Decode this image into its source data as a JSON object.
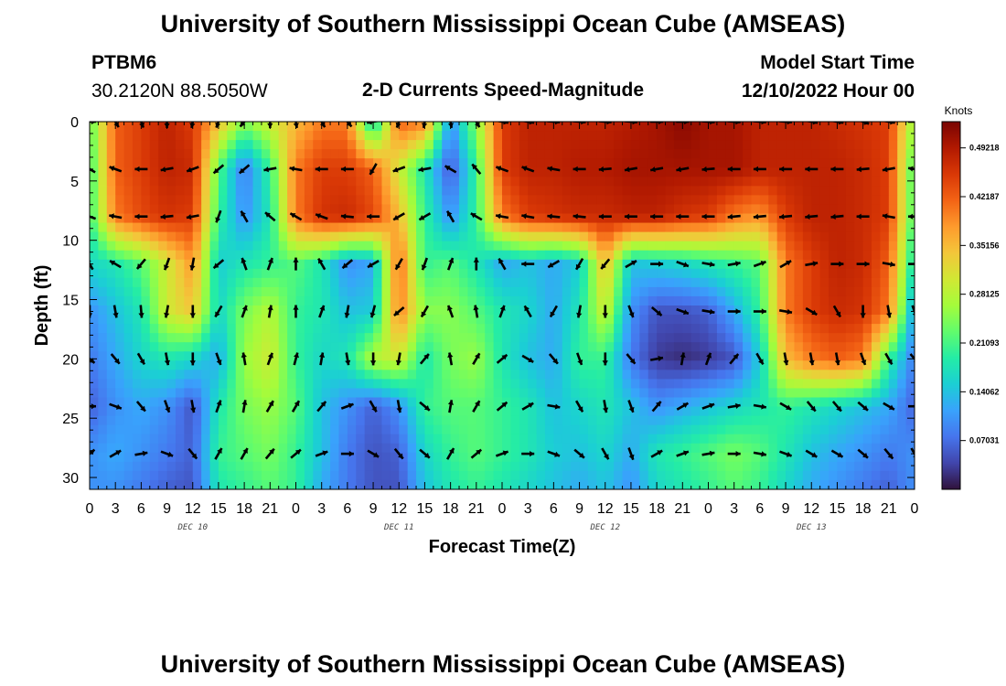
{
  "title": "University of Southern Mississippi Ocean Cube (AMSEAS)",
  "title_bottom": "University of Southern Mississippi Ocean Cube (AMSEAS)",
  "station": {
    "id": "PTBM6",
    "coords": "30.2120N  88.5050W"
  },
  "model_start": {
    "label": "Model Start Time",
    "value": "12/10/2022 Hour 00"
  },
  "chart_data": {
    "type": "heatmap",
    "title": "2-D Currents Speed-Magnitude",
    "xlabel": "Forecast Time(Z)",
    "ylabel": "Depth (ft)",
    "x_tick_labels": [
      "0",
      "3",
      "6",
      "9",
      "12",
      "15",
      "18",
      "21",
      "0",
      "3",
      "6",
      "9",
      "12",
      "15",
      "18",
      "21",
      "0",
      "3",
      "6",
      "9",
      "12",
      "15",
      "18",
      "21",
      "0",
      "3",
      "6",
      "9",
      "12",
      "15",
      "18",
      "21",
      "0"
    ],
    "y_ticks": [
      0,
      5,
      10,
      15,
      20,
      25,
      30
    ],
    "ylim": [
      0,
      31
    ],
    "xlim_hours": [
      0,
      96
    ],
    "day_labels": [
      {
        "text": "DEC 10",
        "hour": 12
      },
      {
        "text": "DEC 11",
        "hour": 36
      },
      {
        "text": "DEC 12",
        "hour": 60
      },
      {
        "text": "DEC 13",
        "hour": 84
      }
    ],
    "colorbar": {
      "units": "Knots",
      "min": 0.0,
      "max": 0.53,
      "tick_labels": [
        "0.49218",
        "0.42187",
        "0.35156",
        "0.28125",
        "0.21093",
        "0.14062",
        "0.07031"
      ],
      "tick_values": [
        0.49218,
        0.42187,
        0.35156,
        0.28125,
        0.21093,
        0.14062,
        0.07031
      ],
      "colors": [
        "#30123b",
        "#4145ab",
        "#4675ed",
        "#39a2fc",
        "#1bcfd4",
        "#24eca6",
        "#61fc6c",
        "#a4fc3b",
        "#d1e834",
        "#f3c63a",
        "#fe9b2d",
        "#f36315",
        "#d93806",
        "#b11901",
        "#7a0402"
      ]
    },
    "grid": {
      "hours": [
        0,
        3,
        6,
        9,
        12,
        15,
        18,
        21,
        24,
        27,
        30,
        33,
        36,
        39,
        42,
        45,
        48,
        51,
        54,
        57,
        60,
        63,
        66,
        69,
        72,
        75,
        78,
        81,
        84,
        87,
        90,
        93,
        96
      ],
      "depths": [
        0,
        4,
        8,
        12,
        16,
        20,
        24,
        28,
        31
      ],
      "speed": [
        [
          0.22,
          0.42,
          0.45,
          0.48,
          0.45,
          0.35,
          0.25,
          0.3,
          0.35,
          0.4,
          0.4,
          0.15,
          0.42,
          0.4,
          0.1,
          0.25,
          0.45,
          0.48,
          0.48,
          0.48,
          0.48,
          0.49,
          0.5,
          0.52,
          0.5,
          0.5,
          0.48,
          0.48,
          0.48,
          0.47,
          0.46,
          0.45,
          0.25
        ],
        [
          0.2,
          0.42,
          0.45,
          0.48,
          0.47,
          0.22,
          0.08,
          0.2,
          0.4,
          0.45,
          0.45,
          0.42,
          0.3,
          0.18,
          0.05,
          0.2,
          0.45,
          0.48,
          0.48,
          0.49,
          0.49,
          0.5,
          0.5,
          0.5,
          0.5,
          0.5,
          0.48,
          0.48,
          0.48,
          0.48,
          0.47,
          0.45,
          0.2
        ],
        [
          0.2,
          0.4,
          0.44,
          0.46,
          0.45,
          0.2,
          0.1,
          0.18,
          0.4,
          0.46,
          0.47,
          0.44,
          0.35,
          0.2,
          0.1,
          0.2,
          0.4,
          0.45,
          0.46,
          0.47,
          0.47,
          0.48,
          0.48,
          0.46,
          0.45,
          0.4,
          0.38,
          0.45,
          0.48,
          0.48,
          0.47,
          0.45,
          0.2
        ],
        [
          0.16,
          0.18,
          0.22,
          0.3,
          0.38,
          0.15,
          0.18,
          0.2,
          0.22,
          0.18,
          0.1,
          0.12,
          0.42,
          0.2,
          0.22,
          0.18,
          0.12,
          0.14,
          0.12,
          0.15,
          0.35,
          0.14,
          0.15,
          0.16,
          0.18,
          0.2,
          0.22,
          0.4,
          0.45,
          0.48,
          0.47,
          0.42,
          0.16
        ],
        [
          0.1,
          0.14,
          0.18,
          0.3,
          0.34,
          0.16,
          0.24,
          0.28,
          0.2,
          0.18,
          0.14,
          0.15,
          0.4,
          0.25,
          0.25,
          0.22,
          0.18,
          0.16,
          0.12,
          0.18,
          0.3,
          0.1,
          0.05,
          0.05,
          0.06,
          0.12,
          0.2,
          0.4,
          0.45,
          0.47,
          0.46,
          0.4,
          0.1
        ],
        [
          0.08,
          0.12,
          0.16,
          0.18,
          0.16,
          0.12,
          0.26,
          0.3,
          0.2,
          0.16,
          0.18,
          0.28,
          0.3,
          0.18,
          0.24,
          0.26,
          0.18,
          0.14,
          0.12,
          0.2,
          0.2,
          0.08,
          0.03,
          0.02,
          0.03,
          0.05,
          0.15,
          0.35,
          0.4,
          0.42,
          0.4,
          0.2,
          0.08
        ],
        [
          0.06,
          0.1,
          0.12,
          0.1,
          0.05,
          0.18,
          0.24,
          0.26,
          0.22,
          0.14,
          0.1,
          0.06,
          0.1,
          0.2,
          0.22,
          0.22,
          0.2,
          0.18,
          0.14,
          0.16,
          0.18,
          0.14,
          0.1,
          0.12,
          0.14,
          0.16,
          0.18,
          0.2,
          0.18,
          0.16,
          0.14,
          0.12,
          0.06
        ],
        [
          0.1,
          0.12,
          0.1,
          0.08,
          0.06,
          0.2,
          0.22,
          0.24,
          0.2,
          0.14,
          0.08,
          0.05,
          0.06,
          0.16,
          0.2,
          0.22,
          0.2,
          0.18,
          0.15,
          0.14,
          0.16,
          0.12,
          0.18,
          0.2,
          0.22,
          0.24,
          0.22,
          0.18,
          0.14,
          0.12,
          0.1,
          0.08,
          0.1
        ],
        [
          0.1,
          0.1,
          0.08,
          0.06,
          0.05,
          0.18,
          0.2,
          0.22,
          0.2,
          0.12,
          0.08,
          0.05,
          0.05,
          0.14,
          0.18,
          0.2,
          0.18,
          0.16,
          0.14,
          0.12,
          0.14,
          0.1,
          0.16,
          0.18,
          0.2,
          0.22,
          0.2,
          0.16,
          0.12,
          0.1,
          0.08,
          0.06,
          0.1
        ]
      ],
      "direction_deg": [
        [
          90,
          150,
          160,
          180,
          190,
          200,
          220,
          180,
          170,
          150,
          140,
          260,
          200,
          190,
          170,
          150,
          100,
          100,
          95,
          95,
          95,
          95,
          90,
          90,
          95,
          95,
          95,
          95,
          100,
          100,
          110,
          100,
          90
        ],
        [
          300,
          290,
          270,
          260,
          250,
          230,
          230,
          260,
          280,
          270,
          270,
          210,
          250,
          260,
          300,
          320,
          290,
          290,
          280,
          270,
          265,
          260,
          260,
          260,
          265,
          270,
          270,
          270,
          270,
          270,
          265,
          260,
          280
        ],
        [
          290,
          280,
          270,
          265,
          260,
          200,
          330,
          310,
          300,
          290,
          275,
          270,
          240,
          240,
          330,
          300,
          280,
          280,
          275,
          275,
          270,
          270,
          270,
          270,
          270,
          265,
          265,
          265,
          265,
          265,
          270,
          280,
          270
        ],
        [
          330,
          300,
          220,
          200,
          190,
          230,
          340,
          20,
          0,
          330,
          230,
          240,
          210,
          200,
          20,
          0,
          330,
          270,
          240,
          210,
          220,
          60,
          90,
          110,
          100,
          80,
          70,
          60,
          80,
          90,
          90,
          100,
          90
        ],
        [
          180,
          170,
          175,
          190,
          180,
          210,
          20,
          10,
          0,
          20,
          190,
          195,
          230,
          210,
          340,
          350,
          20,
          330,
          210,
          190,
          180,
          160,
          130,
          110,
          100,
          90,
          90,
          100,
          120,
          150,
          180,
          170,
          160
        ],
        [
          130,
          140,
          150,
          170,
          180,
          160,
          350,
          20,
          15,
          10,
          170,
          180,
          190,
          40,
          350,
          30,
          50,
          120,
          140,
          160,
          180,
          140,
          80,
          10,
          20,
          40,
          150,
          170,
          170,
          170,
          160,
          150,
          140
        ],
        [
          90,
          110,
          140,
          160,
          170,
          20,
          10,
          30,
          30,
          40,
          70,
          150,
          170,
          130,
          10,
          30,
          50,
          60,
          100,
          150,
          170,
          160,
          40,
          60,
          70,
          80,
          100,
          120,
          140,
          140,
          130,
          120,
          90
        ],
        [
          50,
          60,
          80,
          110,
          140,
          30,
          30,
          40,
          50,
          70,
          90,
          120,
          140,
          130,
          30,
          50,
          70,
          90,
          110,
          130,
          150,
          160,
          60,
          70,
          80,
          90,
          100,
          110,
          120,
          120,
          130,
          140,
          150
        ]
      ],
      "arrow_rows_depth": [
        0,
        4,
        8,
        12,
        16,
        20,
        24,
        28
      ]
    }
  }
}
